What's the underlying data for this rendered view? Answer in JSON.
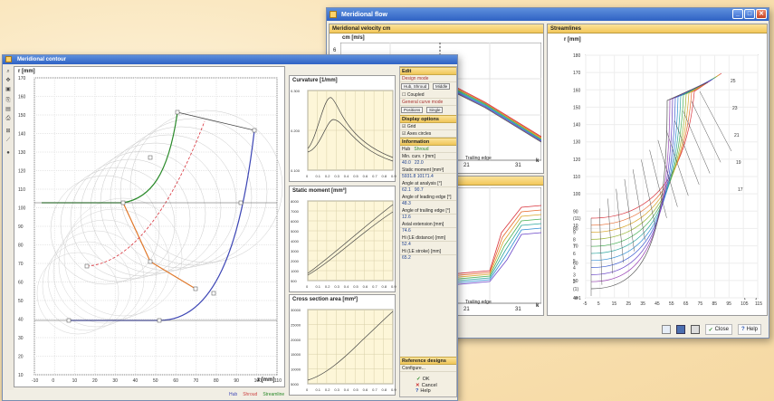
{
  "flow_window": {
    "title": "Meridional flow",
    "minimize": "_",
    "maximize": "□",
    "close": "✕",
    "panel_velocity": {
      "title": "Meridional velocity  cm",
      "ylabel": "cm [m/s]",
      "ytick": "6",
      "xticks": [
        "21",
        "31"
      ],
      "x_unit": "k",
      "trailing": "Trailing edge"
    },
    "panel_lower": {
      "xticks": [
        "21",
        "31"
      ],
      "x_unit": "k",
      "trailing": "Trailing edge"
    },
    "panel_stream": {
      "title": "Streamlines",
      "ylabel": "r [mm]",
      "xlabel": "z [mm]",
      "yticks": [
        "180",
        "170",
        "160",
        "150",
        "140",
        "130",
        "120",
        "110",
        "100",
        "90",
        "80",
        "70",
        "60",
        "50",
        "40"
      ],
      "xticks": [
        "-5",
        "5",
        "15",
        "25",
        "35",
        "45",
        "55",
        "65",
        "75",
        "85",
        "95",
        "105",
        "115"
      ],
      "line_labels": [
        "(11)",
        "10",
        "9",
        "8",
        "7",
        "6",
        "5",
        "4",
        "3",
        "2",
        "(1)"
      ],
      "corner_labels": [
        "i=1",
        "25",
        "23",
        "21",
        "19",
        "17"
      ],
      "line_colors": [
        "#d9323b",
        "#e6682b",
        "#d9a62c",
        "#9ab73a",
        "#48b055",
        "#2fa7a0",
        "#2e8cd3",
        "#3d5cd1",
        "#6a46c8",
        "#9a45b5",
        "#555555"
      ]
    },
    "bottom": {
      "save_icon": "floppy-icon",
      "print_icon": "print-icon",
      "close_label": "Close",
      "help_label": "Help"
    }
  },
  "contour_window": {
    "title": "Meridional contour",
    "main_plot": {
      "ylabel": "r [mm]",
      "xlabel": "z [mm]",
      "yticks": [
        "170",
        "160",
        "150",
        "140",
        "130",
        "120",
        "110",
        "100",
        "90",
        "80",
        "70",
        "60",
        "50",
        "40",
        "30",
        "20",
        "10"
      ],
      "xticks": [
        "-10",
        "0",
        "10",
        "20",
        "30",
        "40",
        "50",
        "60",
        "70",
        "80",
        "90",
        "100",
        "110"
      ]
    },
    "curvature": {
      "title": "Curvature [1/mm]",
      "yticks": [
        "0.300",
        "0.200",
        "0.100"
      ],
      "xticks": [
        "0",
        "0.1",
        "0.2",
        "0.3",
        "0.4",
        "0.5",
        "0.6",
        "0.7",
        "0.8",
        "0.9"
      ]
    },
    "static": {
      "title": "Static moment [mm³]",
      "yticks": [
        "8000",
        "7000",
        "6000",
        "5000",
        "4000",
        "3000",
        "2000",
        "1000",
        "500"
      ],
      "xticks": [
        "0",
        "0.1",
        "0.2",
        "0.3",
        "0.4",
        "0.5",
        "0.6",
        "0.7",
        "0.8",
        "0.9"
      ]
    },
    "cross": {
      "title": "Cross section area [mm²]",
      "yticks": [
        "30000",
        "25000",
        "20000",
        "15000",
        "10000",
        "5000"
      ],
      "xticks": [
        "0",
        "0.1",
        "0.2",
        "0.3",
        "0.4",
        "0.5",
        "0.6",
        "0.7",
        "0.8",
        "0.9"
      ]
    },
    "footer_legend": [
      "Hub",
      "Shroud",
      "Streamline"
    ],
    "sidebar": {
      "edit": "Edit",
      "design_mode": "Design mode",
      "hub_shroud": "Hub, Shroud",
      "middle": "Middle",
      "coupled": "Coupled",
      "general_curve": "General curve mode",
      "positions": "Positions",
      "single": "Single",
      "display": "Display options",
      "grid": "Grid",
      "axes": "Axes circles",
      "information": "Information",
      "hub": "Hub",
      "shroud": "Shroud",
      "min_curv": "Min. curv. r [mm]",
      "min_curv_vals": [
        "40.0",
        "22.0"
      ],
      "static_moment": "Static moment [mm³]",
      "static_vals": [
        "5931.8",
        "10171.4"
      ],
      "angle_analysis": "Angle at analysis [°]",
      "angle_vals": [
        "62.1",
        "90.7"
      ],
      "angle_leading": "Angle of leading edge [°]",
      "angle_leading_val": "48.3",
      "angle_trailing": "Angle of trailing edge [°]",
      "angle_trailing_val": "12.6",
      "axial_ext": "Axial extension [mm]",
      "axial_val": "74.6",
      "le_distance": "Hi (LE distance) [mm]",
      "le_val": "52.4",
      "le_stroke": "Hi (LE stroke) [mm]",
      "le_stroke_val": "65.2",
      "reference": "Reference designs",
      "configure": "Configure...",
      "ok": "OK",
      "cancel": "Cancel",
      "help": "Help"
    }
  }
}
